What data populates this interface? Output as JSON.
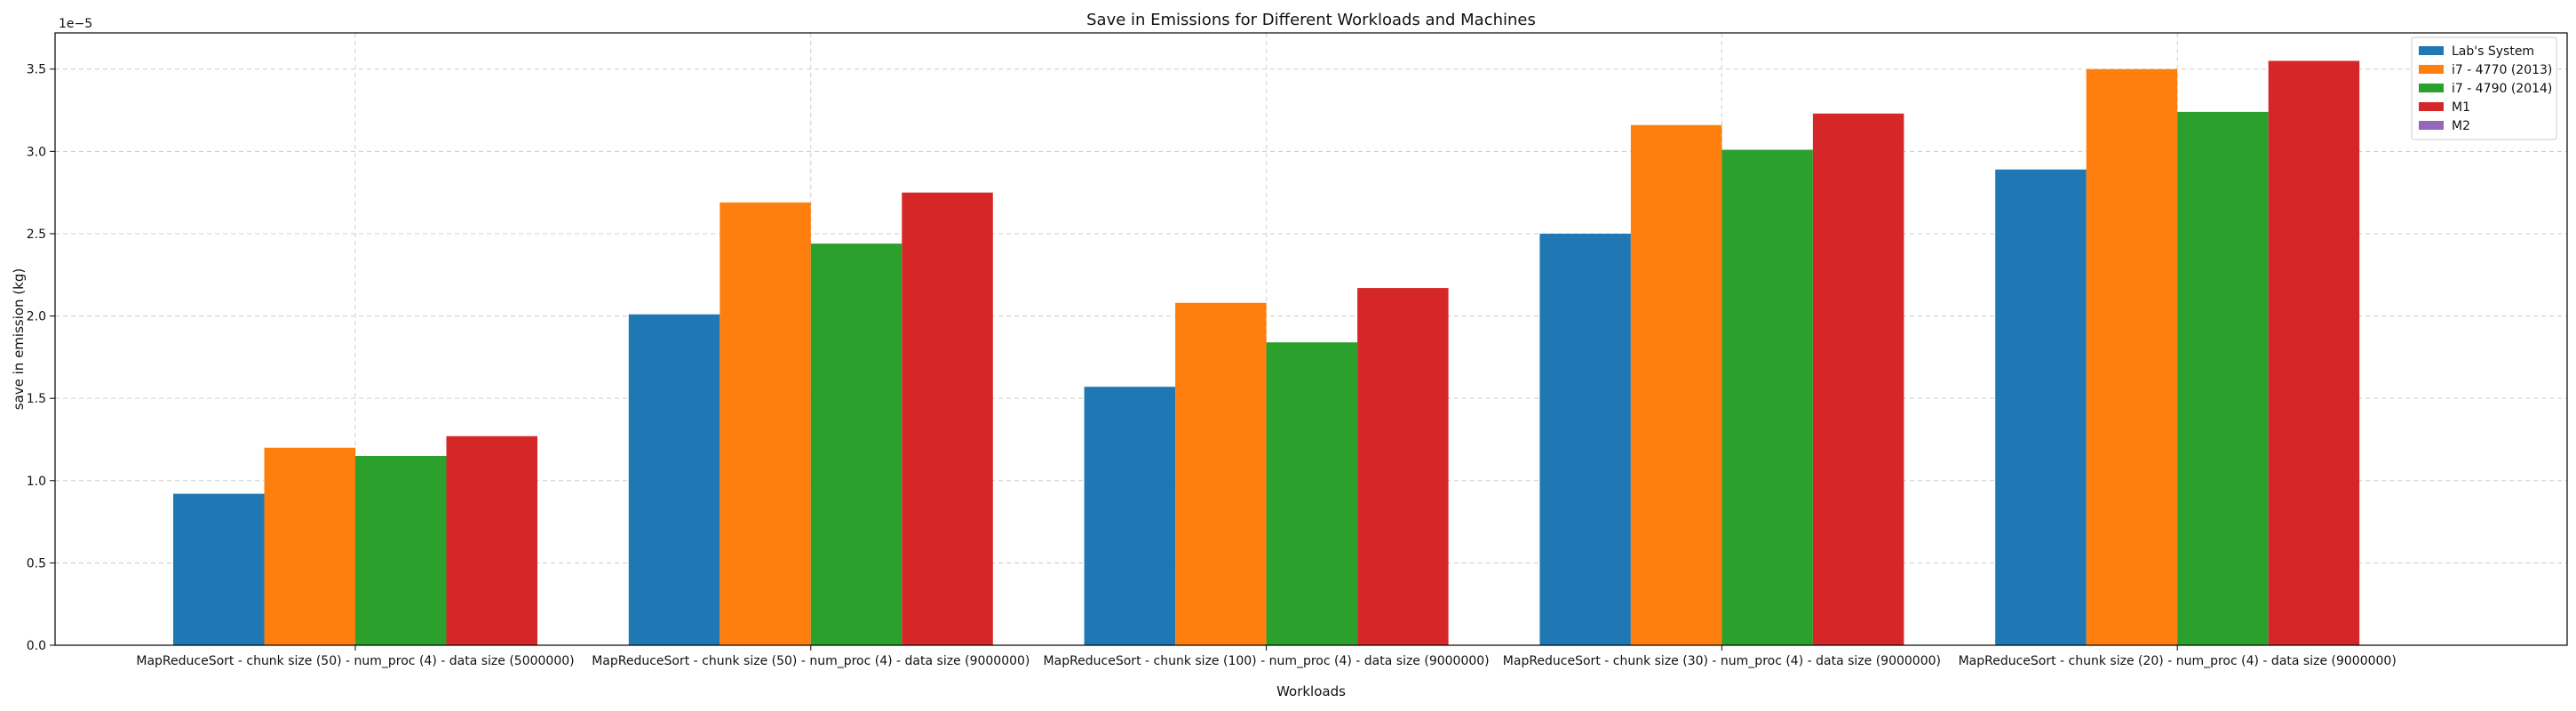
{
  "chart_data": {
    "type": "bar",
    "title": "Save in Emissions for Different Workloads and Machines",
    "xlabel": "Workloads",
    "ylabel": "save in emission (kg)",
    "ylim": [
      0,
      3.72
    ],
    "y_scale_label": "1e−5",
    "y_ticks": [
      "0.0",
      "0.5",
      "1.0",
      "1.5",
      "2.0",
      "2.5",
      "3.0",
      "3.5"
    ],
    "grid": true,
    "legend_position": "top-right",
    "categories": [
      "MapReduceSort - chunk size (50) - num_proc (4) - data size (5000000)",
      "MapReduceSort - chunk size (50) - num_proc (4) - data size (9000000)",
      "MapReduceSort - chunk size (100) - num_proc (4) - data size (9000000)",
      "MapReduceSort - chunk size (30) - num_proc (4) - data size (9000000)",
      "MapReduceSort - chunk size (20) - num_proc (4) - data size (9000000)"
    ],
    "series": [
      {
        "name": "Lab's System",
        "color": "#1f77b4",
        "values": [
          0.92,
          2.01,
          1.57,
          2.5,
          2.89
        ]
      },
      {
        "name": "i7 - 4770 (2013)",
        "color": "#ff7f0e",
        "values": [
          1.2,
          2.69,
          2.08,
          3.16,
          3.5
        ]
      },
      {
        "name": "i7 - 4790 (2014)",
        "color": "#2ca02c",
        "values": [
          1.15,
          2.44,
          1.84,
          3.01,
          3.24
        ]
      },
      {
        "name": "M1",
        "color": "#d62728",
        "values": [
          1.27,
          2.75,
          2.17,
          3.23,
          3.55
        ]
      },
      {
        "name": "M2",
        "color": "#9467bd",
        "values": [
          null,
          null,
          null,
          null,
          null
        ]
      }
    ]
  }
}
